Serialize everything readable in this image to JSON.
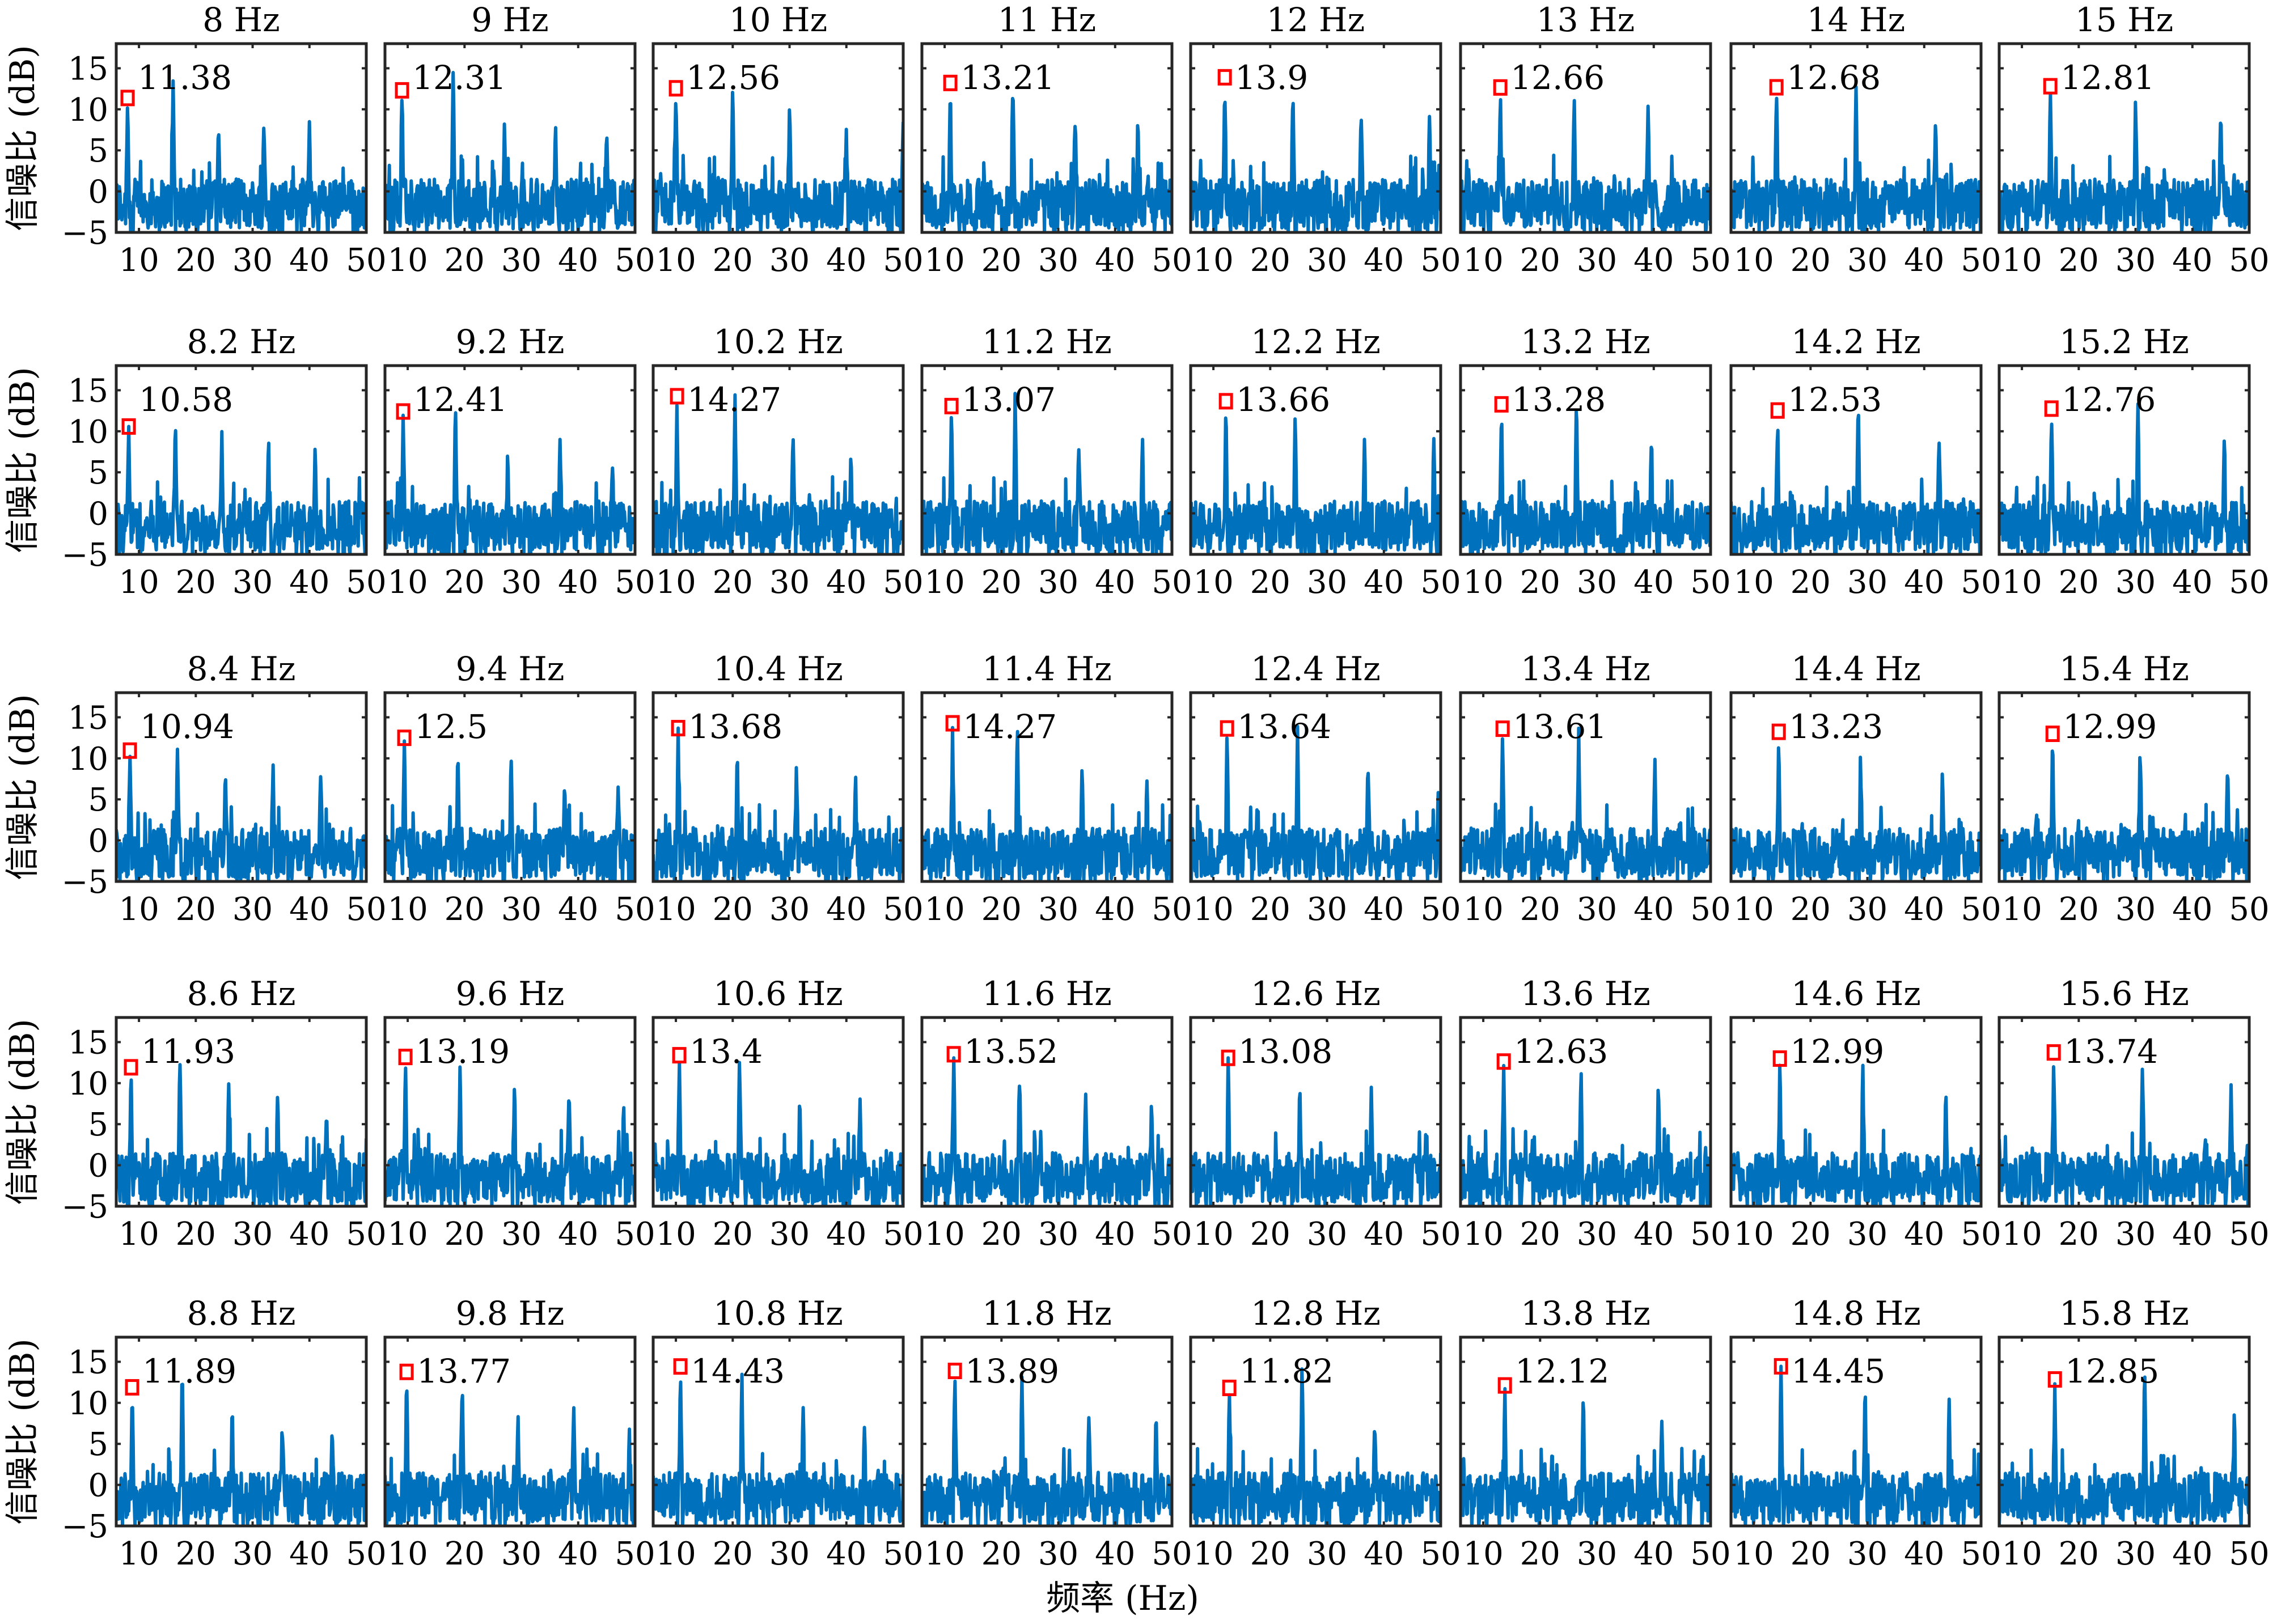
{
  "chart_data": {
    "type": "line",
    "layout": "grid of 5 rows x 8 columns of SNR spectra",
    "xlabel": "频率 (Hz)",
    "ylabel": "信噪比 (dB)",
    "xlim": [
      6,
      50
    ],
    "ylim": [
      -5,
      18
    ],
    "xticks": [
      10,
      20,
      30,
      40,
      50
    ],
    "yticks": [
      -5,
      0,
      5,
      10,
      15
    ],
    "series_color": "#0072BD",
    "marker_color": "#FF0000",
    "grid": false,
    "panels": [
      [
        {
          "title": "8 Hz",
          "stim_hz": 8,
          "snr_label": "11.38"
        },
        {
          "title": "9 Hz",
          "stim_hz": 9,
          "snr_label": "12.31"
        },
        {
          "title": "10 Hz",
          "stim_hz": 10,
          "snr_label": "12.56"
        },
        {
          "title": "11 Hz",
          "stim_hz": 11,
          "snr_label": "13.21"
        },
        {
          "title": "12 Hz",
          "stim_hz": 12,
          "snr_label": "13.9"
        },
        {
          "title": "13 Hz",
          "stim_hz": 13,
          "snr_label": "12.66"
        },
        {
          "title": "14 Hz",
          "stim_hz": 14,
          "snr_label": "12.68"
        },
        {
          "title": "15 Hz",
          "stim_hz": 15,
          "snr_label": "12.81"
        }
      ],
      [
        {
          "title": "8.2 Hz",
          "stim_hz": 8.2,
          "snr_label": "10.58"
        },
        {
          "title": "9.2 Hz",
          "stim_hz": 9.2,
          "snr_label": "12.41"
        },
        {
          "title": "10.2 Hz",
          "stim_hz": 10.2,
          "snr_label": "14.27"
        },
        {
          "title": "11.2 Hz",
          "stim_hz": 11.2,
          "snr_label": "13.07"
        },
        {
          "title": "12.2 Hz",
          "stim_hz": 12.2,
          "snr_label": "13.66"
        },
        {
          "title": "13.2 Hz",
          "stim_hz": 13.2,
          "snr_label": "13.28"
        },
        {
          "title": "14.2 Hz",
          "stim_hz": 14.2,
          "snr_label": "12.53"
        },
        {
          "title": "15.2 Hz",
          "stim_hz": 15.2,
          "snr_label": "12.76"
        }
      ],
      [
        {
          "title": "8.4 Hz",
          "stim_hz": 8.4,
          "snr_label": "10.94"
        },
        {
          "title": "9.4 Hz",
          "stim_hz": 9.4,
          "snr_label": "12.5"
        },
        {
          "title": "10.4 Hz",
          "stim_hz": 10.4,
          "snr_label": "13.68"
        },
        {
          "title": "11.4 Hz",
          "stim_hz": 11.4,
          "snr_label": "14.27"
        },
        {
          "title": "12.4 Hz",
          "stim_hz": 12.4,
          "snr_label": "13.64"
        },
        {
          "title": "13.4 Hz",
          "stim_hz": 13.4,
          "snr_label": "13.61"
        },
        {
          "title": "14.4 Hz",
          "stim_hz": 14.4,
          "snr_label": "13.23"
        },
        {
          "title": "15.4 Hz",
          "stim_hz": 15.4,
          "snr_label": "12.99"
        }
      ],
      [
        {
          "title": "8.6 Hz",
          "stim_hz": 8.6,
          "snr_label": "11.93"
        },
        {
          "title": "9.6 Hz",
          "stim_hz": 9.6,
          "snr_label": "13.19"
        },
        {
          "title": "10.6 Hz",
          "stim_hz": 10.6,
          "snr_label": "13.4"
        },
        {
          "title": "11.6 Hz",
          "stim_hz": 11.6,
          "snr_label": "13.52"
        },
        {
          "title": "12.6 Hz",
          "stim_hz": 12.6,
          "snr_label": "13.08"
        },
        {
          "title": "13.6 Hz",
          "stim_hz": 13.6,
          "snr_label": "12.63"
        },
        {
          "title": "14.6 Hz",
          "stim_hz": 14.6,
          "snr_label": "12.99"
        },
        {
          "title": "15.6 Hz",
          "stim_hz": 15.6,
          "snr_label": "13.74"
        }
      ],
      [
        {
          "title": "8.8 Hz",
          "stim_hz": 8.8,
          "snr_label": "11.89"
        },
        {
          "title": "9.8 Hz",
          "stim_hz": 9.8,
          "snr_label": "13.77"
        },
        {
          "title": "10.8 Hz",
          "stim_hz": 10.8,
          "snr_label": "14.43"
        },
        {
          "title": "11.8 Hz",
          "stim_hz": 11.8,
          "snr_label": "13.89"
        },
        {
          "title": "12.8 Hz",
          "stim_hz": 12.8,
          "snr_label": "11.82"
        },
        {
          "title": "13.8 Hz",
          "stim_hz": 13.8,
          "snr_label": "12.12"
        },
        {
          "title": "14.8 Hz",
          "stim_hz": 14.8,
          "snr_label": "14.45"
        },
        {
          "title": "15.8 Hz",
          "stim_hz": 15.8,
          "snr_label": "12.85"
        }
      ]
    ]
  }
}
